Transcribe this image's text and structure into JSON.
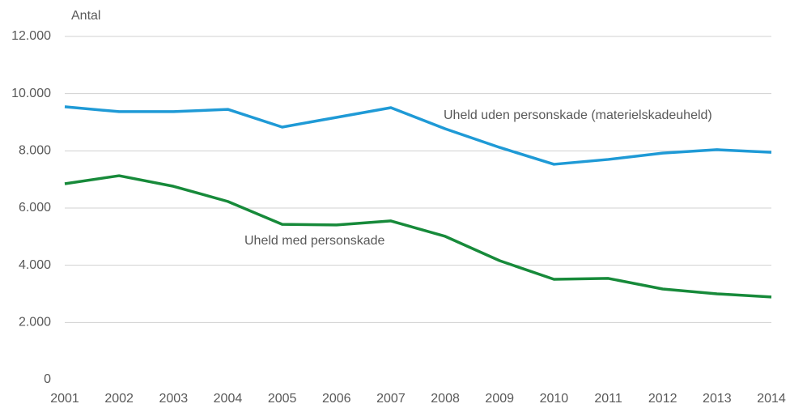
{
  "chart_data": {
    "type": "line",
    "y_axis_label": "Antal",
    "categories": [
      "2001",
      "2002",
      "2003",
      "2004",
      "2005",
      "2006",
      "2007",
      "2008",
      "2009",
      "2010",
      "2011",
      "2012",
      "2013",
      "2014"
    ],
    "series": [
      {
        "name": "Uheld uden personskade (materielskadeuheld)",
        "color": "#1f9ad6",
        "values": [
          9540,
          9370,
          9370,
          9450,
          8830,
          9170,
          9510,
          8770,
          8120,
          7530,
          7700,
          7920,
          8040,
          7950
        ]
      },
      {
        "name": "Uheld med personskade",
        "color": "#178a3a",
        "values": [
          6850,
          7130,
          6760,
          6230,
          5430,
          5410,
          5550,
          5010,
          4160,
          3510,
          3540,
          3170,
          3000,
          2890
        ]
      }
    ],
    "ylim": [
      0,
      12000
    ],
    "yticks": [
      0,
      {
        "value": 2000,
        "label": "2.000"
      },
      {
        "value": 4000,
        "label": "4.000"
      },
      {
        "value": 6000,
        "label": "6.000"
      },
      {
        "value": 8000,
        "label": "8.000"
      },
      {
        "value": 10000,
        "label": "10.000"
      },
      {
        "value": 12000,
        "label": "12.000"
      }
    ],
    "grid": true
  }
}
